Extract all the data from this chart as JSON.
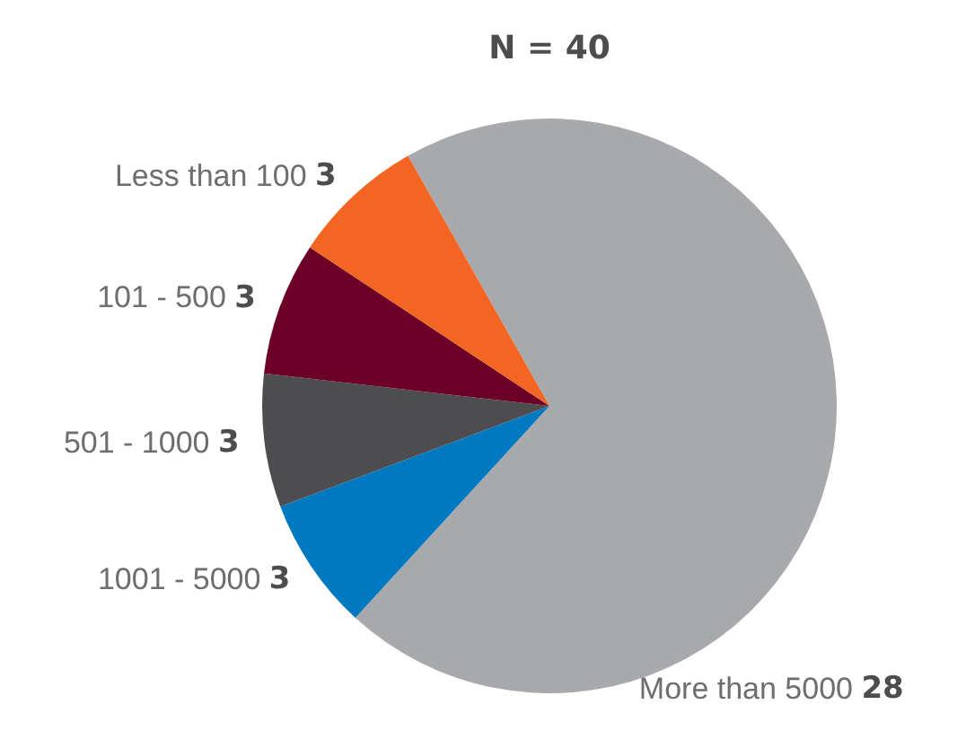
{
  "chart_data": {
    "type": "pie",
    "title": "N = 40",
    "categories": [
      "More than 5000",
      "1001 - 5000",
      "501 - 1000",
      "101 - 500",
      "Less than 100"
    ],
    "values": [
      28,
      3,
      3,
      3,
      3
    ],
    "colors": [
      "#a7a9ac",
      "#0079c1",
      "#4d4d4f",
      "#6d0026",
      "#f26522"
    ],
    "data_labels": true,
    "legend": false
  }
}
